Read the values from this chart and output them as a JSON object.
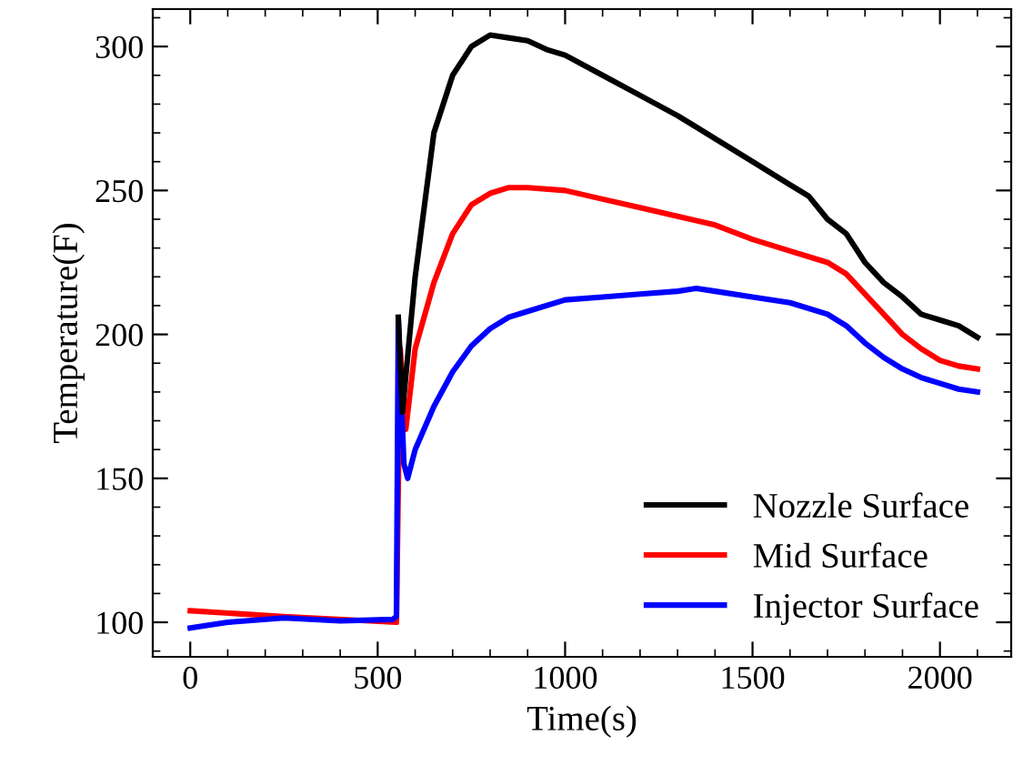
{
  "chart_data": {
    "type": "line",
    "xlabel": "Time(s)",
    "ylabel": "Temperature(F)",
    "xlim": [
      -100,
      2190
    ],
    "ylim": [
      88,
      313
    ],
    "xticks": [
      0,
      500,
      1000,
      1500,
      2000
    ],
    "yticks": [
      100,
      150,
      200,
      250,
      300
    ],
    "grid": false,
    "legend": "bottom right",
    "marker": "none",
    "line_style": "solid",
    "series": [
      {
        "name": "Nozzle Surface",
        "color": "#000000",
        "x": [
          555,
          566,
          600,
          650,
          700,
          750,
          800,
          850,
          900,
          950,
          1000,
          1100,
          1200,
          1300,
          1400,
          1500,
          1600,
          1650,
          1700,
          1750,
          1800,
          1850,
          1900,
          1950,
          2000,
          2050,
          2100
        ],
        "values": [
          206,
          173,
          220,
          270,
          290,
          300,
          304,
          303,
          302,
          299,
          297,
          290,
          283,
          276,
          268,
          260,
          252,
          248,
          240,
          235,
          225,
          218,
          213,
          207,
          205,
          203,
          199
        ]
      },
      {
        "name": "Mid Surface",
        "color": "#ff0000",
        "x": [
          0,
          250,
          550,
          560,
          575,
          600,
          650,
          700,
          750,
          800,
          850,
          900,
          1000,
          1100,
          1200,
          1300,
          1400,
          1500,
          1600,
          1700,
          1750,
          1800,
          1850,
          1900,
          1950,
          2000,
          2050,
          2100
        ],
        "values": [
          104,
          102,
          100,
          195,
          167,
          195,
          218,
          235,
          245,
          249,
          251,
          251,
          250,
          247,
          244,
          241,
          238,
          233,
          229,
          225,
          221,
          214,
          207,
          200,
          195,
          191,
          189,
          188
        ]
      },
      {
        "name": "Injector Surface",
        "color": "#0000ff",
        "x": [
          0,
          100,
          250,
          400,
          540,
          550,
          555,
          570,
          580,
          600,
          650,
          700,
          750,
          800,
          850,
          900,
          1000,
          1100,
          1200,
          1300,
          1350,
          1400,
          1500,
          1600,
          1700,
          1750,
          1800,
          1850,
          1900,
          1950,
          2000,
          2050,
          2100
        ],
        "values": [
          98,
          100,
          101.5,
          100.5,
          101,
          102,
          205,
          155,
          150,
          160,
          175,
          187,
          196,
          202,
          206,
          208,
          212,
          213,
          214,
          215,
          216,
          215,
          213,
          211,
          207,
          203,
          197,
          192,
          188,
          185,
          183,
          181,
          180
        ]
      }
    ]
  }
}
